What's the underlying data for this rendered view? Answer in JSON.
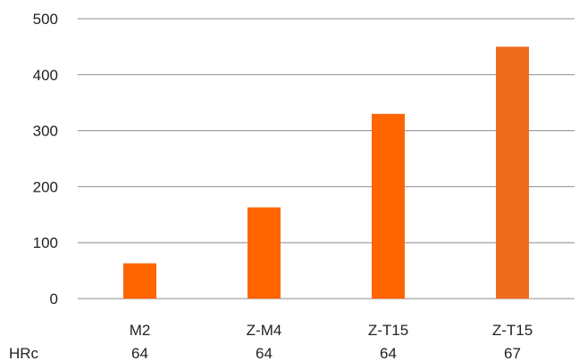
{
  "chart_data": {
    "type": "bar",
    "categories": [
      "M2",
      "Z-M4",
      "Z-T15",
      "Z-T15"
    ],
    "secondary_row_label": "HRc",
    "secondary_row_values": [
      "64",
      "64",
      "64",
      "67"
    ],
    "values": [
      63,
      163,
      330,
      450
    ],
    "bar_colors": [
      "#ff6600",
      "#ff6600",
      "#ff6600",
      "#ef6c1c"
    ],
    "yticks": [
      "0",
      "100",
      "200",
      "300",
      "400",
      "500"
    ],
    "ylim": [
      0,
      500
    ],
    "grid": true,
    "legend": "none",
    "gridline_color": "#8c8c8c",
    "title": "",
    "xlabel": "",
    "ylabel": ""
  }
}
